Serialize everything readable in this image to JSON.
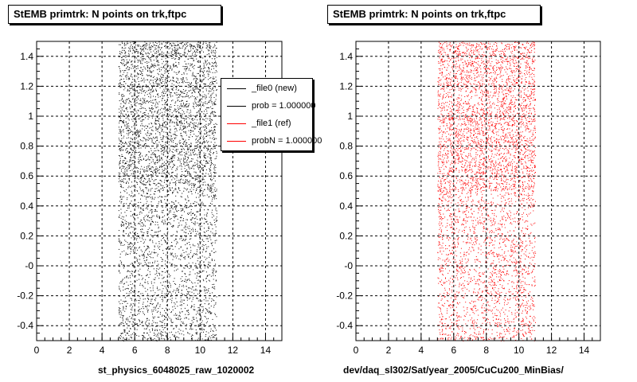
{
  "chart_data": [
    {
      "type": "scatter",
      "title": "StEMB primtrk: N points on trk,ftpc",
      "xlabel": "st_physics_6048025_raw_1020002",
      "ylabel": "",
      "xlim": [
        0,
        15
      ],
      "ylim": [
        -0.5,
        1.5
      ],
      "xticks": [
        "0",
        "2",
        "4",
        "6",
        "8",
        "10",
        "12",
        "14"
      ],
      "yticks": [
        "-0.4",
        "-0.2",
        "-0",
        "0.2",
        "0.4",
        "0.6",
        "0.8",
        "1",
        "1.2",
        "1.4"
      ],
      "grid": true,
      "color": "#000000",
      "density_note_x_range": [
        5,
        11
      ],
      "legend": {
        "placement": "top-right",
        "entries": [
          {
            "label": "_file0 (new)",
            "color": "#000000"
          },
          {
            "label": "prob = 1.000000",
            "color": "#000000"
          },
          {
            "label": "_file1 (ref)",
            "color": "#ff0000"
          },
          {
            "label": "probN = 1.000000",
            "color": "#ff0000"
          }
        ]
      }
    },
    {
      "type": "scatter",
      "title": "StEMB primtrk: N points on trk,ftpc",
      "xlabel": "dev/daq_sl302/Sat/year_2005/CuCu200_MinBias/",
      "ylabel": "",
      "xlim": [
        0,
        15
      ],
      "ylim": [
        -0.5,
        1.5
      ],
      "xticks": [
        "0",
        "2",
        "4",
        "6",
        "8",
        "10",
        "12",
        "14"
      ],
      "yticks": [
        "-0.4",
        "-0.2",
        "-0",
        "0.2",
        "0.4",
        "0.6",
        "0.8",
        "1",
        "1.2",
        "1.4"
      ],
      "grid": true,
      "color": "#ff0000",
      "density_note_x_range": [
        5,
        11
      ]
    }
  ]
}
